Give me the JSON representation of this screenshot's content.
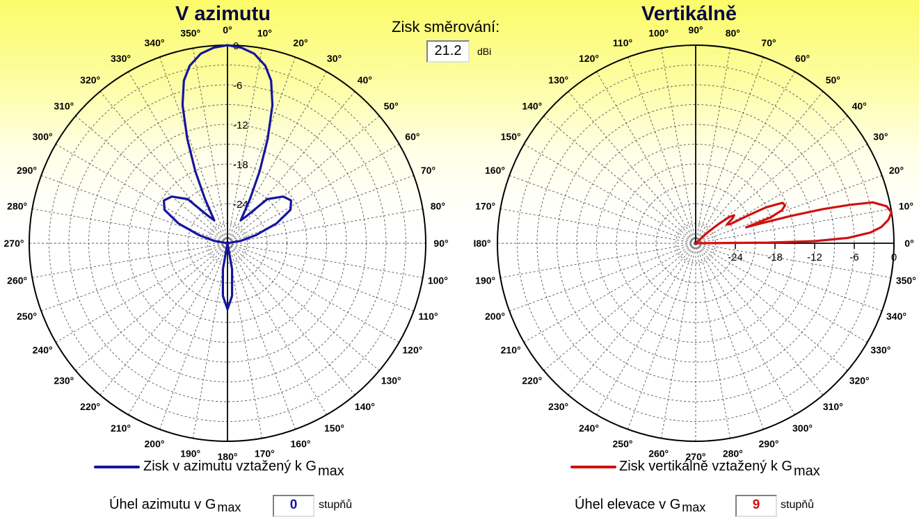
{
  "gain": {
    "label": "Zisk směrování:",
    "value": "21.2",
    "unit": "dBi"
  },
  "colors": {
    "azimuth": "#1515a0",
    "vertical": "#d11010",
    "grid": "#555555",
    "text": "#000000"
  },
  "chart_data": [
    {
      "type": "polar-line",
      "title": "V azimutu",
      "radial_ticks": [
        "0",
        "-6",
        "-12",
        "-18",
        "-24"
      ],
      "radial_range_db": [
        -30,
        0
      ],
      "angle_direction": "clockwise",
      "zero_angle": "top",
      "angle_labels": [
        "0°",
        "10°",
        "20°",
        "30°",
        "40°",
        "50°",
        "60°",
        "70°",
        "80°",
        "90°",
        "100°",
        "110°",
        "120°",
        "130°",
        "140°",
        "150°",
        "160°",
        "170°",
        "180°",
        "190°",
        "200°",
        "210°",
        "220°",
        "230°",
        "240°",
        "250°",
        "260°",
        "270°",
        "280°",
        "290°",
        "300°",
        "310°",
        "320°",
        "330°",
        "340°",
        "350°"
      ],
      "series": [
        {
          "name": "Zisk v azimutu vztažený k G",
          "name_sub": "max",
          "points": [
            [
              0,
              0
            ],
            [
              4,
              -0.3
            ],
            [
              8,
              -1
            ],
            [
              12,
              -2.5
            ],
            [
              15,
              -4.5
            ],
            [
              18,
              -8
            ],
            [
              21,
              -13
            ],
            [
              24,
              -18
            ],
            [
              27,
              -22.5
            ],
            [
              30,
              -26
            ],
            [
              35,
              -25
            ],
            [
              42,
              -21
            ],
            [
              50,
              -19
            ],
            [
              56,
              -18.4
            ],
            [
              62,
              -19.2
            ],
            [
              68,
              -22
            ],
            [
              74,
              -25.5
            ],
            [
              80,
              -28
            ],
            [
              90,
              -30
            ],
            [
              170,
              -26
            ],
            [
              175,
              -22
            ],
            [
              180,
              -20
            ],
            [
              185,
              -22
            ],
            [
              190,
              -26
            ],
            [
              270,
              -30
            ],
            [
              280,
              -28
            ],
            [
              286,
              -25.5
            ],
            [
              292,
              -22
            ],
            [
              298,
              -19.2
            ],
            [
              304,
              -18.4
            ],
            [
              310,
              -19
            ],
            [
              318,
              -21
            ],
            [
              325,
              -25
            ],
            [
              330,
              -26
            ],
            [
              333,
              -22.5
            ],
            [
              336,
              -18
            ],
            [
              339,
              -13
            ],
            [
              342,
              -8
            ],
            [
              345,
              -4.5
            ],
            [
              348,
              -2.5
            ],
            [
              352,
              -1
            ],
            [
              356,
              -0.3
            ],
            [
              360,
              0
            ]
          ]
        }
      ]
    },
    {
      "type": "polar-line",
      "title": "Vertikálně",
      "radial_ticks": [
        "-24",
        "-18",
        "-12",
        "-6",
        "0"
      ],
      "radial_range_db": [
        -30,
        0
      ],
      "angle_direction": "counterclockwise",
      "zero_angle": "right",
      "angle_labels": [
        "0°",
        "10°",
        "20°",
        "30°",
        "40°",
        "50°",
        "60°",
        "70°",
        "80°",
        "90°",
        "100°",
        "110°",
        "120°",
        "130°",
        "140°",
        "150°",
        "160°",
        "170°",
        "I80°",
        "190°",
        "200°",
        "210°",
        "220°",
        "230°",
        "240°",
        "250°",
        "260°",
        "270°",
        "280°",
        "290°",
        "300°",
        "310°",
        "320°",
        "330°",
        "340°",
        "350°"
      ],
      "series": [
        {
          "name": "Zisk vertikálně vztažený k G",
          "name_sub": "max",
          "points": [
            [
              0,
              -30
            ],
            [
              0.5,
              -19
            ],
            [
              1,
              -12
            ],
            [
              2,
              -7
            ],
            [
              3.5,
              -3.5
            ],
            [
              5,
              -1.8
            ],
            [
              7,
              -0.6
            ],
            [
              9,
              0
            ],
            [
              11,
              -0.6
            ],
            [
              13,
              -2.5
            ],
            [
              14,
              -6
            ],
            [
              15,
              -10
            ],
            [
              16,
              -15
            ],
            [
              17,
              -20
            ],
            [
              17.5,
              -22
            ],
            [
              18,
              -21
            ],
            [
              19,
              -18
            ],
            [
              21,
              -16
            ],
            [
              23,
              -15.3
            ],
            [
              25,
              -15.5
            ],
            [
              27,
              -18
            ],
            [
              28,
              -21
            ],
            [
              29,
              -24
            ],
            [
              31,
              -24.5
            ],
            [
              34,
              -23.3
            ],
            [
              36,
              -22.8
            ],
            [
              38,
              -23.5
            ],
            [
              40,
              -25.5
            ],
            [
              42,
              -27.5
            ],
            [
              45,
              -30
            ]
          ]
        }
      ]
    }
  ],
  "azimuth": {
    "title": "V azimutu",
    "legend": "Zisk v azimutu vztažený k G",
    "legend_sub": "max",
    "angle_label": "Úhel azimutu v G",
    "angle_label_sub": "max",
    "angle_value": "0",
    "angle_unit": "stupňů"
  },
  "vertical": {
    "title": "Vertikálně",
    "legend": "Zisk vertikálně vztažený k G",
    "legend_sub": "max",
    "angle_label": "Úhel elevace v G",
    "angle_label_sub": "max",
    "angle_value": "9",
    "angle_unit": "stupňů"
  }
}
